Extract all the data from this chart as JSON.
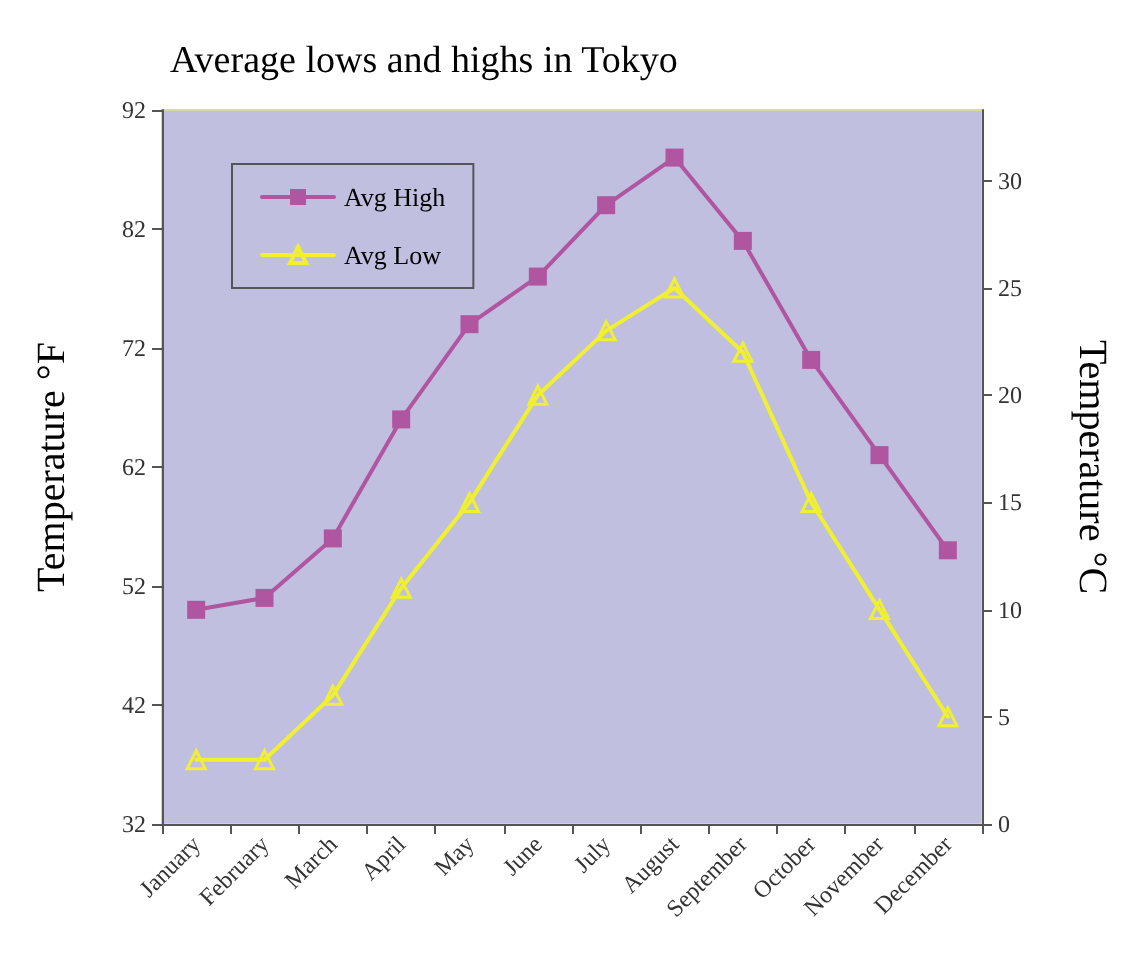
{
  "chart_data": {
    "type": "line",
    "title": "Average lows and highs in Tokyo",
    "ylabel": "Temperature °F",
    "y2label": "Temperature °C",
    "categories": [
      "January",
      "February",
      "March",
      "April",
      "May",
      "June",
      "July",
      "August",
      "September",
      "October",
      "November",
      "December"
    ],
    "series": [
      {
        "name": "Avg High",
        "color": "#b0559f",
        "marker": "square",
        "values": [
          50,
          51,
          56,
          66,
          74,
          78,
          84,
          88,
          81,
          71,
          63,
          55
        ]
      },
      {
        "name": "Avg Low",
        "color": "#f0f030",
        "marker": "triangle",
        "axis": "y2",
        "values": [
          3,
          3,
          6,
          11,
          15,
          20,
          23,
          25,
          22,
          15,
          10,
          5
        ]
      }
    ],
    "ylim": [
      32,
      92
    ],
    "yticks": [
      32,
      42,
      52,
      62,
      72,
      82,
      92
    ],
    "y2lim": [
      0,
      33.3
    ],
    "y2ticks": [
      0,
      5,
      10,
      15,
      20,
      25,
      30
    ],
    "grid": false,
    "legend": "top left"
  }
}
